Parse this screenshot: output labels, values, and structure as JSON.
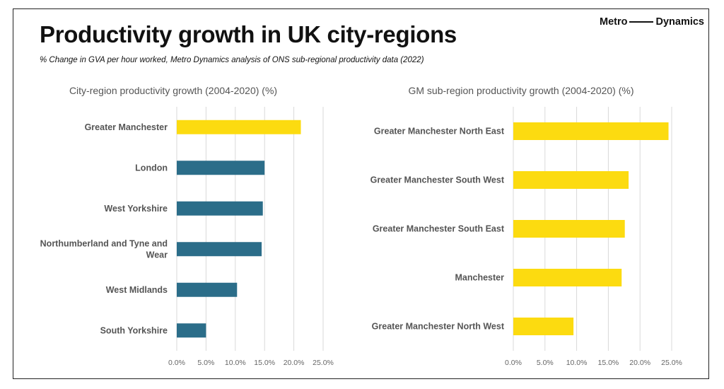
{
  "header": {
    "title": "Productivity growth in UK city-regions",
    "subtitle": "% Change in GVA per hour worked, Metro Dynamics analysis of ONS sub-regional productivity data (2022)",
    "brand_left": "Metro",
    "brand_right": "Dynamics"
  },
  "colors": {
    "yellow": "#FCDB10",
    "teal": "#2B6D89",
    "grid": "#D9D9D9"
  },
  "chart_data": [
    {
      "type": "bar",
      "orientation": "horizontal",
      "title": "City-region productivity growth (2004-2020) (%)",
      "categories": [
        "Greater Manchester",
        "London",
        "West Yorkshire",
        "Northumberland and Tyne and Wear",
        "West Midlands",
        "South Yorkshire"
      ],
      "values": [
        21.2,
        15.0,
        14.7,
        14.5,
        10.3,
        5.0
      ],
      "bar_colors": [
        "#FCDB10",
        "#2B6D89",
        "#2B6D89",
        "#2B6D89",
        "#2B6D89",
        "#2B6D89"
      ],
      "xlim": [
        0,
        25
      ],
      "xticks": [
        "0.0%",
        "5.0%",
        "10.0%",
        "15.0%",
        "20.0%",
        "25.0%"
      ],
      "grid": true
    },
    {
      "type": "bar",
      "orientation": "horizontal",
      "title": "GM sub-region productivity growth (2004-2020) (%)",
      "categories": [
        "Greater Manchester North East",
        "Greater Manchester South West",
        "Greater Manchester South East",
        "Manchester",
        "Greater Manchester North West"
      ],
      "values": [
        24.5,
        18.2,
        17.6,
        17.1,
        9.5
      ],
      "bar_colors": [
        "#FCDB10",
        "#FCDB10",
        "#FCDB10",
        "#FCDB10",
        "#FCDB10"
      ],
      "xlim": [
        0,
        25
      ],
      "xticks": [
        "0.0%",
        "5.0%",
        "10.0%",
        "15.0%",
        "20.0%",
        "25.0%"
      ],
      "grid": true
    }
  ]
}
